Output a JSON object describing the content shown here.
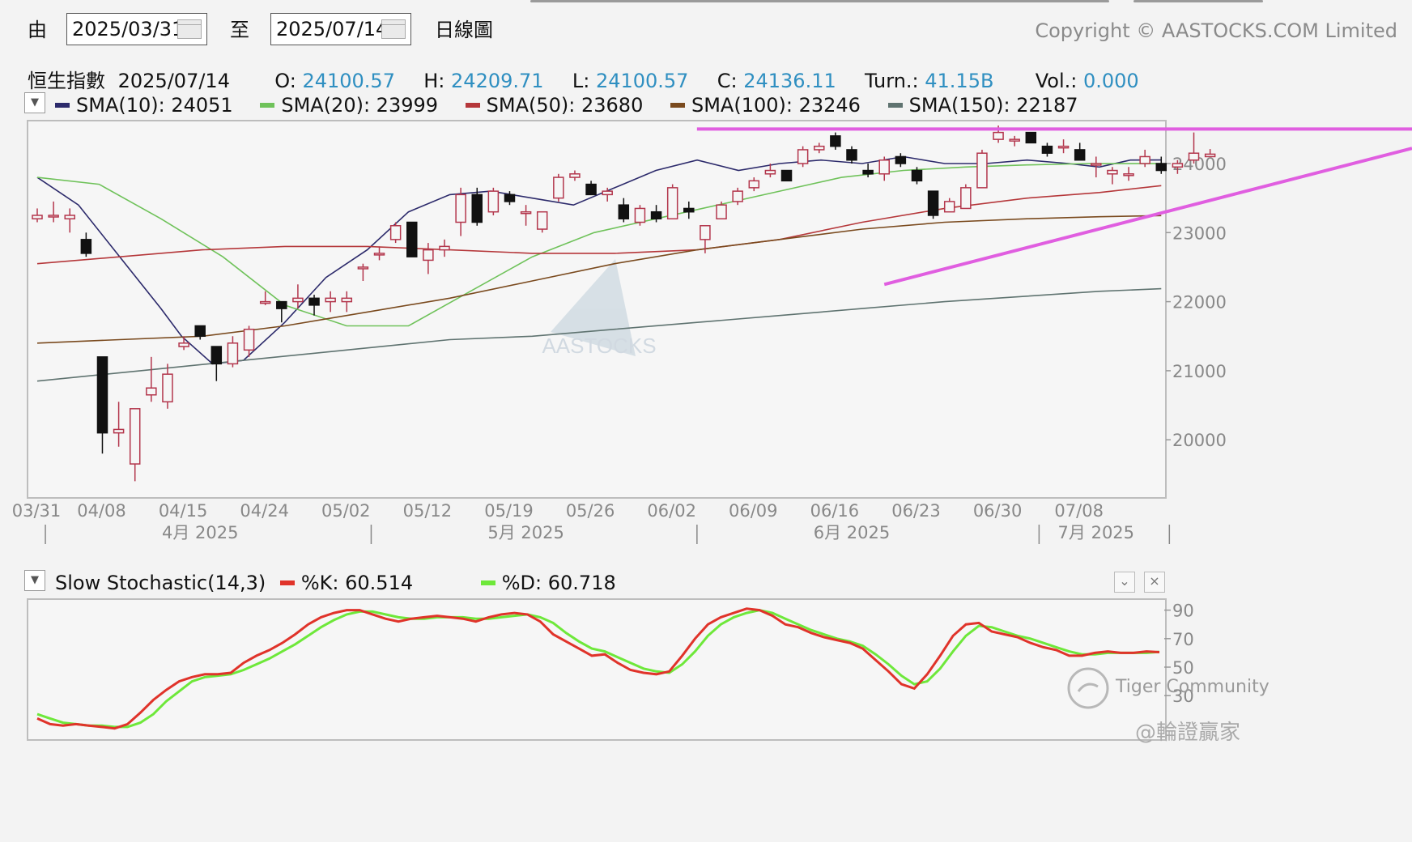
{
  "controls": {
    "from_label": "由",
    "from_date": "2025/03/31",
    "to_label": "至",
    "to_date": "2025/07/14",
    "chart_type": "日線圖",
    "copyright": "Copyright © AASTOCKS.COM Limited"
  },
  "quote": {
    "name": "恒生指數",
    "date": "2025/07/14",
    "open_label": "O:",
    "open": "24100.57",
    "high_label": "H:",
    "high": "24209.71",
    "low_label": "L:",
    "low": "24100.57",
    "close_label": "C:",
    "close": "24136.11",
    "turn_label": "Turn.:",
    "turn": "41.15B",
    "vol_label": "Vol.:",
    "vol": "0.000"
  },
  "sma_legend": [
    {
      "label": "SMA(10): 24051",
      "color": "#2c2a6b"
    },
    {
      "label": "SMA(20): 23999",
      "color": "#6fc25a"
    },
    {
      "label": "SMA(50): 23680",
      "color": "#b5373a"
    },
    {
      "label": "SMA(100): 23246",
      "color": "#7a4a1e"
    },
    {
      "label": "SMA(150): 22187",
      "color": "#5f7370"
    }
  ],
  "stoch_legend": {
    "title": "Slow Stochastic(14,3)",
    "k_label": "%K: 60.514",
    "d_label": "%D: 60.718",
    "k_color": "#e0332a",
    "d_color": "#6ee83a"
  },
  "watermarks": {
    "main": "AASTOCKS",
    "community": "Tiger Community",
    "handle": "@輪證贏家"
  },
  "chart_data": [
    {
      "type": "candlestick",
      "title": "恒生指數 2025/07/14",
      "y_ticks": [
        20000,
        21000,
        22000,
        23000,
        24000
      ],
      "ylim": [
        19300,
        24800
      ],
      "x_tick_labels": [
        "03/31",
        "04/08",
        "04/15",
        "04/24",
        "05/02",
        "05/12",
        "05/19",
        "05/26",
        "06/02",
        "06/09",
        "06/16",
        "06/23",
        "06/30",
        "07/08"
      ],
      "x_tick_index": [
        0,
        4,
        9,
        14,
        19,
        24,
        29,
        34,
        39,
        44,
        49,
        54,
        59,
        64
      ],
      "month_labels": [
        {
          "label": "4月 2025",
          "index": 10
        },
        {
          "label": "5月 2025",
          "index": 30
        },
        {
          "label": "6月 2025",
          "index": 50
        },
        {
          "label": "7月 2025",
          "index": 65
        }
      ],
      "month_separators": [
        0.5,
        20.5,
        40.5,
        61.5,
        69.5
      ],
      "candles": [
        [
          23200,
          23350,
          23150,
          23250
        ],
        [
          23250,
          23450,
          23150,
          23250
        ],
        [
          23200,
          23350,
          23000,
          23250
        ],
        [
          22900,
          23000,
          22650,
          22700
        ],
        [
          21200,
          21200,
          19800,
          20100
        ],
        [
          20100,
          20550,
          19900,
          20150
        ],
        [
          19650,
          20400,
          19400,
          20450
        ],
        [
          20650,
          21200,
          20550,
          20750
        ],
        [
          20550,
          21100,
          20450,
          20950
        ],
        [
          21350,
          21500,
          21300,
          21400
        ],
        [
          21650,
          21650,
          21450,
          21500
        ],
        [
          21350,
          21300,
          20850,
          21100
        ],
        [
          21100,
          21500,
          21050,
          21400
        ],
        [
          21300,
          21650,
          21200,
          21600
        ],
        [
          22000,
          22150,
          21950,
          22000
        ],
        [
          22000,
          22000,
          21700,
          21900
        ],
        [
          22000,
          22250,
          21900,
          22050
        ],
        [
          22050,
          22100,
          21800,
          21950
        ],
        [
          22000,
          22150,
          21850,
          22050
        ],
        [
          22000,
          22150,
          21850,
          22050
        ],
        [
          22500,
          22550,
          22300,
          22500
        ],
        [
          22700,
          22800,
          22600,
          22700
        ],
        [
          22900,
          23150,
          22850,
          23100
        ],
        [
          23150,
          23150,
          22650,
          22650
        ],
        [
          22600,
          22850,
          22400,
          22750
        ],
        [
          22750,
          22900,
          22650,
          22800
        ],
        [
          23150,
          23650,
          22950,
          23550
        ],
        [
          23550,
          23650,
          23100,
          23150
        ],
        [
          23300,
          23650,
          23250,
          23600
        ],
        [
          23550,
          23600,
          23400,
          23450
        ],
        [
          23300,
          23400,
          23100,
          23300
        ],
        [
          23050,
          23300,
          23000,
          23300
        ],
        [
          23500,
          23850,
          23450,
          23800
        ],
        [
          23800,
          23900,
          23750,
          23850
        ],
        [
          23700,
          23750,
          23550,
          23550
        ],
        [
          23550,
          23650,
          23450,
          23600
        ],
        [
          23400,
          23500,
          23150,
          23200
        ],
        [
          23150,
          23400,
          23100,
          23350
        ],
        [
          23300,
          23400,
          23150,
          23200
        ],
        [
          23200,
          23700,
          23200,
          23650
        ],
        [
          23350,
          23450,
          23200,
          23300
        ],
        [
          22900,
          23100,
          22700,
          23100
        ],
        [
          23200,
          23450,
          23200,
          23400
        ],
        [
          23450,
          23650,
          23400,
          23600
        ],
        [
          23650,
          23800,
          23600,
          23750
        ],
        [
          23850,
          24000,
          23800,
          23900
        ],
        [
          23900,
          23900,
          23750,
          23750
        ],
        [
          24000,
          24250,
          23950,
          24200
        ],
        [
          24200,
          24300,
          24150,
          24250
        ],
        [
          24400,
          24450,
          24200,
          24250
        ],
        [
          24200,
          24250,
          24000,
          24050
        ],
        [
          23900,
          24000,
          23800,
          23850
        ],
        [
          23850,
          24100,
          23750,
          24050
        ],
        [
          24100,
          24150,
          23950,
          24000
        ],
        [
          23900,
          23950,
          23700,
          23750
        ],
        [
          23600,
          23600,
          23200,
          23250
        ],
        [
          23300,
          23500,
          23300,
          23450
        ],
        [
          23350,
          23700,
          23350,
          23650
        ],
        [
          23650,
          24200,
          23650,
          24150
        ],
        [
          24350,
          24550,
          24300,
          24450
        ],
        [
          24350,
          24400,
          24250,
          24350
        ],
        [
          24450,
          24450,
          24300,
          24300
        ],
        [
          24250,
          24300,
          24100,
          24150
        ],
        [
          24250,
          24350,
          24150,
          24250
        ],
        [
          24200,
          24300,
          24100,
          24050
        ],
        [
          24000,
          24100,
          23800,
          24000
        ],
        [
          23850,
          23950,
          23700,
          23900
        ],
        [
          23850,
          23950,
          23750,
          23850
        ],
        [
          24000,
          24200,
          23950,
          24100
        ],
        [
          24000,
          24100,
          23850,
          23900
        ],
        [
          23950,
          24050,
          23850,
          24000
        ],
        [
          24050,
          24450,
          24000,
          24150
        ],
        [
          24100,
          24210,
          24100,
          24136
        ]
      ],
      "sma_series": [
        {
          "name": "SMA(10)",
          "color": "#2c2a6b",
          "points": [
            [
              0,
              23800
            ],
            [
              4,
              23400
            ],
            [
              8,
              22650
            ],
            [
              12,
              21900
            ],
            [
              14,
              21500
            ],
            [
              17,
              21100
            ],
            [
              20,
              21150
            ],
            [
              24,
              21700
            ],
            [
              28,
              22350
            ],
            [
              32,
              22750
            ],
            [
              36,
              23300
            ],
            [
              40,
              23550
            ],
            [
              44,
              23600
            ],
            [
              48,
              23500
            ],
            [
              52,
              23400
            ],
            [
              56,
              23650
            ],
            [
              60,
              23900
            ],
            [
              64,
              24050
            ],
            [
              68,
              23900
            ],
            [
              72,
              24000
            ],
            [
              76,
              24050
            ],
            [
              80,
              24000
            ],
            [
              84,
              24100
            ],
            [
              88,
              24000
            ],
            [
              92,
              24000
            ],
            [
              96,
              24050
            ],
            [
              100,
              24000
            ],
            [
              103,
              23950
            ],
            [
              106,
              24050
            ],
            [
              109,
              24051
            ]
          ]
        },
        {
          "name": "SMA(20)",
          "color": "#6fc25a",
          "points": [
            [
              0,
              23800
            ],
            [
              6,
              23700
            ],
            [
              12,
              23200
            ],
            [
              18,
              22650
            ],
            [
              24,
              21950
            ],
            [
              30,
              21650
            ],
            [
              36,
              21650
            ],
            [
              42,
              22150
            ],
            [
              48,
              22650
            ],
            [
              54,
              23000
            ],
            [
              60,
              23200
            ],
            [
              66,
              23400
            ],
            [
              72,
              23600
            ],
            [
              78,
              23800
            ],
            [
              84,
              23900
            ],
            [
              90,
              23950
            ],
            [
              96,
              23980
            ],
            [
              102,
              24000
            ],
            [
              109,
              23999
            ]
          ]
        },
        {
          "name": "SMA(50)",
          "color": "#b5373a",
          "points": [
            [
              0,
              22550
            ],
            [
              8,
              22650
            ],
            [
              16,
              22750
            ],
            [
              24,
              22800
            ],
            [
              32,
              22800
            ],
            [
              40,
              22750
            ],
            [
              48,
              22700
            ],
            [
              56,
              22700
            ],
            [
              64,
              22750
            ],
            [
              72,
              22900
            ],
            [
              80,
              23150
            ],
            [
              88,
              23350
            ],
            [
              96,
              23500
            ],
            [
              103,
              23580
            ],
            [
              109,
              23680
            ]
          ]
        },
        {
          "name": "SMA(100)",
          "color": "#7a4a1e",
          "points": [
            [
              0,
              21400
            ],
            [
              8,
              21450
            ],
            [
              16,
              21500
            ],
            [
              24,
              21650
            ],
            [
              32,
              21850
            ],
            [
              40,
              22050
            ],
            [
              48,
              22300
            ],
            [
              56,
              22550
            ],
            [
              64,
              22750
            ],
            [
              72,
              22900
            ],
            [
              80,
              23050
            ],
            [
              88,
              23150
            ],
            [
              96,
              23200
            ],
            [
              103,
              23230
            ],
            [
              109,
              23246
            ]
          ]
        },
        {
          "name": "SMA(150)",
          "color": "#5f7370",
          "points": [
            [
              0,
              20850
            ],
            [
              10,
              21000
            ],
            [
              20,
              21150
            ],
            [
              30,
              21300
            ],
            [
              40,
              21450
            ],
            [
              48,
              21500
            ],
            [
              56,
              21600
            ],
            [
              64,
              21700
            ],
            [
              72,
              21800
            ],
            [
              80,
              21900
            ],
            [
              88,
              22000
            ],
            [
              96,
              22080
            ],
            [
              103,
              22150
            ],
            [
              109,
              22187
            ]
          ]
        }
      ],
      "trend_lines": [
        {
          "color": "#e05ee0",
          "from": [
            40.5,
            24500
          ],
          "to": [
            140,
            24500
          ]
        },
        {
          "color": "#e05ee0",
          "from": [
            52,
            22250
          ],
          "to": [
            140,
            24220
          ]
        }
      ]
    },
    {
      "type": "line",
      "title": "Slow Stochastic(14,3)",
      "y_ticks": [
        30,
        50,
        70,
        90
      ],
      "ylim": [
        0,
        100
      ],
      "series": [
        {
          "name": "%K",
          "color": "#e0332a",
          "values": [
            14,
            10,
            9,
            10,
            9,
            8,
            7,
            10,
            18,
            27,
            34,
            40,
            43,
            45,
            45,
            46,
            53,
            58,
            62,
            67,
            73,
            80,
            85,
            88,
            90,
            90,
            87,
            84,
            82,
            84,
            85,
            86,
            85,
            84,
            82,
            85,
            87,
            88,
            87,
            82,
            73,
            68,
            63,
            58,
            59,
            53,
            48,
            46,
            45,
            47,
            58,
            70,
            80,
            85,
            88,
            91,
            90,
            86,
            80,
            78,
            74,
            71,
            69,
            67,
            63,
            55,
            47,
            38,
            35,
            45,
            58,
            72,
            80,
            81,
            75,
            73,
            71,
            67,
            64,
            62,
            58,
            58,
            60,
            61,
            60,
            60,
            61,
            60.514
          ]
        },
        {
          "name": "%D",
          "color": "#6ee83a",
          "values": [
            17,
            14,
            11,
            10,
            9,
            9,
            8,
            8,
            11,
            17,
            26,
            33,
            40,
            43,
            44,
            45,
            48,
            52,
            56,
            61,
            66,
            72,
            78,
            83,
            87,
            89,
            89,
            87,
            85,
            84,
            84,
            85,
            85,
            85,
            84,
            84,
            85,
            86,
            87,
            85,
            81,
            74,
            68,
            63,
            61,
            57,
            53,
            49,
            47,
            46,
            52,
            61,
            72,
            80,
            85,
            88,
            90,
            88,
            84,
            80,
            76,
            73,
            70,
            68,
            65,
            59,
            52,
            44,
            38,
            40,
            49,
            61,
            72,
            79,
            78,
            75,
            72,
            70,
            67,
            64,
            61,
            59,
            59,
            60,
            60,
            60,
            60,
            60.718
          ]
        }
      ]
    }
  ]
}
